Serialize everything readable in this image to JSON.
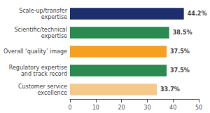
{
  "chart_data": {
    "type": "bar",
    "orientation": "horizontal",
    "categories": [
      "Customer service\nexcellence",
      "Regulatory expertise\nand track record",
      "Overall ‘quality’ image",
      "Scientific/technical\nexpertise",
      "Scale-up/transfer\nexpertise"
    ],
    "values": [
      33.7,
      37.5,
      37.5,
      38.5,
      44.2
    ],
    "value_labels": [
      "33.7%",
      "37.5%",
      "37.5%",
      "38.5%",
      "44.2%"
    ],
    "colors": [
      "#f5c98a",
      "#2a8a50",
      "#f5a020",
      "#2a8a50",
      "#1e2f6e"
    ],
    "xlim": [
      0,
      50
    ],
    "xticks": [
      0,
      10,
      20,
      30,
      40,
      50
    ],
    "grid": false,
    "data_labels": true
  }
}
